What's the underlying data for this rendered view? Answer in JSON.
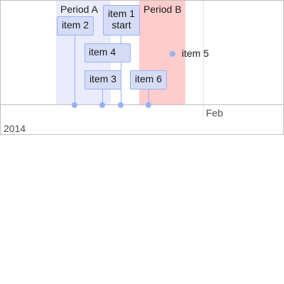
{
  "timeline": {
    "periods": [
      {
        "label": "Period A",
        "color": "#eaecfc"
      },
      {
        "label": "Period B",
        "color": "#ffcccc"
      }
    ],
    "items": {
      "item1": {
        "line1": "item 1",
        "line2": "start"
      },
      "item2": {
        "label": "item 2"
      },
      "item3": {
        "label": "item 3"
      },
      "item4": {
        "label": "item 4"
      },
      "item5": {
        "label": "item 5",
        "type": "point"
      },
      "item6": {
        "label": "item 6"
      }
    },
    "axis": {
      "minor_label": "Feb",
      "major_label": "2014"
    },
    "colors": {
      "item_fill": "#d5ddf6",
      "item_border": "#97b0f8"
    }
  }
}
